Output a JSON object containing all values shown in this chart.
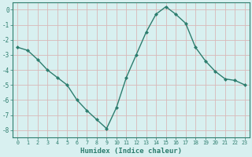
{
  "x": [
    0,
    1,
    2,
    3,
    4,
    5,
    6,
    7,
    8,
    9,
    10,
    11,
    12,
    13,
    14,
    15,
    16,
    17,
    18,
    19,
    20,
    21,
    22,
    23
  ],
  "y": [
    -2.5,
    -2.7,
    -3.3,
    -4.0,
    -4.5,
    -5.0,
    -6.0,
    -6.7,
    -7.3,
    -7.9,
    -6.5,
    -4.5,
    -3.0,
    -1.5,
    -0.3,
    0.2,
    -0.3,
    -0.9,
    -2.5,
    -3.4,
    -4.1,
    -4.6,
    -4.7,
    -5.0
  ],
  "line_color": "#2d7d6e",
  "marker_color": "#2d7d6e",
  "bg_color": "#d8f0f0",
  "grid_color": "#c8dede",
  "xlabel": "Humidex (Indice chaleur)",
  "xlim": [
    -0.5,
    23.5
  ],
  "ylim": [
    -8.5,
    0.5
  ],
  "xtick_labels": [
    "0",
    "1",
    "2",
    "3",
    "4",
    "5",
    "6",
    "7",
    "8",
    "9",
    "10",
    "11",
    "12",
    "13",
    "14",
    "15",
    "16",
    "17",
    "18",
    "19",
    "20",
    "21",
    "22",
    "23"
  ],
  "yticks": [
    0,
    -1,
    -2,
    -3,
    -4,
    -5,
    -6,
    -7,
    -8
  ],
  "font_color": "#2d7d6e"
}
